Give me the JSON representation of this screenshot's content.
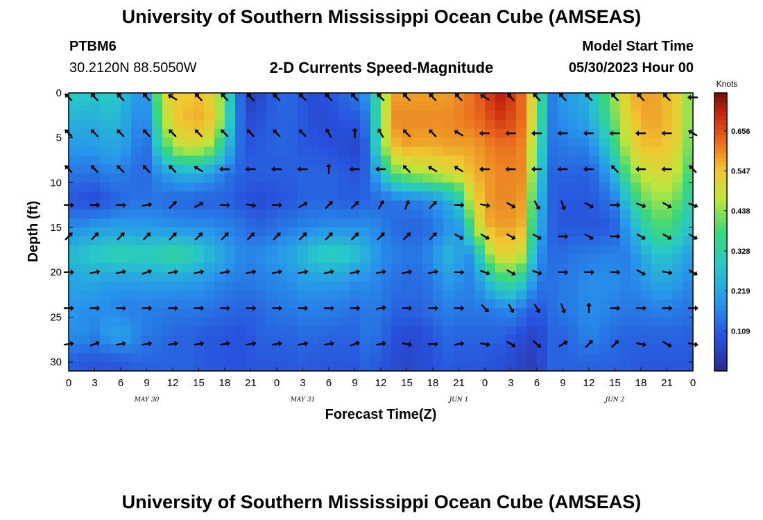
{
  "header": {
    "title": "University of Southern Mississippi Ocean Cube (AMSEAS)",
    "station": "PTBM6",
    "coords": "30.2120N  88.5050W",
    "plot_title": "2-D Currents Speed-Magnitude",
    "start_label": "Model Start Time",
    "start_value": "05/30/2023 Hour 00"
  },
  "footer": {
    "title": "University of Southern Mississippi Ocean Cube (AMSEAS)"
  },
  "colors": {
    "low": "#2d2e8f",
    "mid": "#22c58a",
    "high": "#7a0c07",
    "arrow": "#000000"
  },
  "chart_data": {
    "type": "heatmap",
    "title": "2-D Currents Speed-Magnitude",
    "xlabel": "Forecast Time(Z)",
    "ylabel": "Depth (ft)",
    "xlim": [
      0,
      72
    ],
    "ylim": [
      31,
      0
    ],
    "x_ticks": [
      0,
      3,
      6,
      9,
      12,
      15,
      18,
      21,
      24,
      27,
      30,
      33,
      36,
      39,
      42,
      45,
      48,
      51,
      54,
      57,
      60,
      63,
      66,
      69,
      72
    ],
    "x_tick_labels": [
      "0",
      "3",
      "6",
      "9",
      "12",
      "15",
      "18",
      "21",
      "0",
      "3",
      "6",
      "9",
      "12",
      "15",
      "18",
      "21",
      "0",
      "3",
      "6",
      "9",
      "12",
      "15",
      "18",
      "21",
      "0"
    ],
    "day_labels": [
      {
        "x": 9,
        "text": "MAY 30"
      },
      {
        "x": 27,
        "text": "MAY 31"
      },
      {
        "x": 45,
        "text": "JUN 1"
      },
      {
        "x": 63,
        "text": "JUN 2"
      }
    ],
    "y_ticks": [
      0,
      5,
      10,
      15,
      20,
      25,
      30
    ],
    "colorbar": {
      "label": "Knots",
      "ticks": [
        0.109,
        0.219,
        0.328,
        0.438,
        0.547,
        0.656
      ],
      "tick_labels": [
        "0.109",
        "0.219",
        "0.328",
        "0.438",
        "0.547",
        "0.656"
      ],
      "min": 0.0,
      "max": 0.76
    },
    "arrow_depths": [
      0.5,
      4.5,
      8.5,
      12.5,
      16.0,
      20.0,
      24.0,
      28.0
    ],
    "arrow_times": [
      0,
      3,
      6,
      9,
      12,
      15,
      18,
      21,
      24,
      27,
      30,
      33,
      36,
      39,
      42,
      45,
      48,
      51,
      54,
      57,
      60,
      63,
      66,
      69,
      72
    ],
    "arrow_directions_deg": [
      [
        315,
        315,
        315,
        315,
        300,
        315,
        315,
        315,
        315,
        310,
        315,
        315,
        315,
        315,
        315,
        315,
        300,
        315,
        315,
        315,
        315,
        315,
        315,
        315,
        270
      ],
      [
        315,
        315,
        315,
        315,
        315,
        315,
        315,
        315,
        315,
        315,
        330,
        360,
        330,
        315,
        315,
        300,
        270,
        270,
        270,
        270,
        270,
        270,
        270,
        270,
        300
      ],
      [
        315,
        315,
        315,
        315,
        315,
        300,
        270,
        270,
        270,
        270,
        360,
        270,
        270,
        315,
        300,
        300,
        270,
        270,
        270,
        270,
        270,
        315,
        270,
        270,
        315
      ],
      [
        90,
        90,
        90,
        80,
        45,
        60,
        90,
        100,
        90,
        60,
        45,
        45,
        30,
        20,
        45,
        90,
        100,
        120,
        150,
        160,
        120,
        90,
        110,
        120,
        110
      ],
      [
        45,
        45,
        45,
        45,
        45,
        45,
        45,
        45,
        45,
        45,
        45,
        45,
        45,
        45,
        45,
        120,
        120,
        120,
        120,
        90,
        120,
        90,
        120,
        120,
        120
      ],
      [
        90,
        80,
        80,
        70,
        80,
        80,
        80,
        80,
        80,
        80,
        80,
        80,
        80,
        80,
        80,
        90,
        110,
        120,
        110,
        90,
        90,
        90,
        120,
        100,
        120
      ],
      [
        90,
        90,
        90,
        90,
        90,
        90,
        90,
        90,
        90,
        90,
        90,
        90,
        80,
        90,
        90,
        90,
        135,
        150,
        150,
        160,
        360,
        90,
        90,
        90,
        90
      ],
      [
        80,
        70,
        80,
        80,
        80,
        80,
        80,
        80,
        80,
        80,
        80,
        70,
        80,
        100,
        90,
        80,
        100,
        120,
        130,
        60,
        45,
        45,
        100,
        120,
        100
      ]
    ],
    "profile_times": [
      0,
      1.5,
      3,
      4.5,
      6,
      7.5,
      9,
      10.5,
      12,
      13.5,
      15,
      16.5,
      18,
      19.5,
      21,
      22.5,
      24,
      25.5,
      27,
      28.5,
      30,
      31.5,
      33,
      34.5,
      36,
      37.5,
      39,
      40.5,
      42,
      43.5,
      45,
      46.5,
      48,
      49.5,
      51,
      52.5,
      54,
      55.5,
      57,
      58.5,
      60,
      61.5,
      63,
      64.5,
      66,
      67.5,
      69,
      70.5,
      72
    ],
    "profile_depths": [
      0,
      3,
      6,
      9,
      12,
      15,
      18,
      21,
      24,
      27,
      30
    ],
    "speed_knots": [
      [
        0.3,
        0.25,
        0.2,
        0.15,
        0.1,
        0.18,
        0.26,
        0.22,
        0.2,
        0.18,
        0.12
      ],
      [
        0.3,
        0.24,
        0.2,
        0.14,
        0.09,
        0.18,
        0.28,
        0.22,
        0.18,
        0.18,
        0.1
      ],
      [
        0.28,
        0.24,
        0.2,
        0.14,
        0.08,
        0.2,
        0.3,
        0.22,
        0.18,
        0.16,
        0.1
      ],
      [
        0.3,
        0.26,
        0.22,
        0.16,
        0.1,
        0.2,
        0.32,
        0.2,
        0.18,
        0.2,
        0.1
      ],
      [
        0.28,
        0.25,
        0.22,
        0.16,
        0.12,
        0.21,
        0.33,
        0.2,
        0.16,
        0.22,
        0.1
      ],
      [
        0.2,
        0.18,
        0.16,
        0.13,
        0.14,
        0.2,
        0.32,
        0.2,
        0.16,
        0.18,
        0.12
      ],
      [
        0.2,
        0.18,
        0.14,
        0.13,
        0.14,
        0.2,
        0.32,
        0.21,
        0.16,
        0.15,
        0.12
      ],
      [
        0.45,
        0.4,
        0.32,
        0.18,
        0.14,
        0.19,
        0.33,
        0.21,
        0.15,
        0.14,
        0.12
      ],
      [
        0.55,
        0.54,
        0.46,
        0.22,
        0.12,
        0.19,
        0.35,
        0.21,
        0.15,
        0.12,
        0.12
      ],
      [
        0.54,
        0.56,
        0.5,
        0.24,
        0.12,
        0.18,
        0.34,
        0.2,
        0.15,
        0.12,
        0.12
      ],
      [
        0.55,
        0.57,
        0.49,
        0.23,
        0.11,
        0.18,
        0.3,
        0.2,
        0.15,
        0.11,
        0.11
      ],
      [
        0.52,
        0.55,
        0.45,
        0.2,
        0.11,
        0.18,
        0.26,
        0.18,
        0.14,
        0.1,
        0.1
      ],
      [
        0.4,
        0.4,
        0.3,
        0.15,
        0.12,
        0.16,
        0.22,
        0.16,
        0.13,
        0.1,
        0.1
      ],
      [
        0.15,
        0.15,
        0.14,
        0.12,
        0.1,
        0.15,
        0.18,
        0.15,
        0.12,
        0.09,
        0.09
      ],
      [
        0.05,
        0.08,
        0.1,
        0.11,
        0.09,
        0.13,
        0.17,
        0.15,
        0.12,
        0.1,
        0.1
      ],
      [
        0.08,
        0.1,
        0.11,
        0.11,
        0.08,
        0.12,
        0.18,
        0.16,
        0.13,
        0.12,
        0.1
      ],
      [
        0.12,
        0.12,
        0.12,
        0.11,
        0.1,
        0.14,
        0.2,
        0.17,
        0.15,
        0.12,
        0.1
      ],
      [
        0.13,
        0.12,
        0.12,
        0.11,
        0.1,
        0.15,
        0.22,
        0.18,
        0.15,
        0.12,
        0.1
      ],
      [
        0.1,
        0.1,
        0.1,
        0.12,
        0.12,
        0.16,
        0.26,
        0.2,
        0.16,
        0.13,
        0.11
      ],
      [
        0.08,
        0.08,
        0.1,
        0.12,
        0.12,
        0.17,
        0.3,
        0.2,
        0.16,
        0.13,
        0.1
      ],
      [
        0.1,
        0.08,
        0.09,
        0.12,
        0.12,
        0.18,
        0.32,
        0.2,
        0.16,
        0.12,
        0.1
      ],
      [
        0.12,
        0.1,
        0.08,
        0.11,
        0.11,
        0.18,
        0.31,
        0.2,
        0.15,
        0.12,
        0.1
      ],
      [
        0.15,
        0.1,
        0.07,
        0.1,
        0.11,
        0.18,
        0.28,
        0.18,
        0.14,
        0.12,
        0.1
      ],
      [
        0.2,
        0.15,
        0.12,
        0.12,
        0.12,
        0.18,
        0.24,
        0.18,
        0.15,
        0.15,
        0.12
      ],
      [
        0.4,
        0.42,
        0.4,
        0.26,
        0.13,
        0.16,
        0.18,
        0.16,
        0.15,
        0.13,
        0.1
      ],
      [
        0.58,
        0.6,
        0.55,
        0.4,
        0.14,
        0.13,
        0.16,
        0.14,
        0.12,
        0.09,
        0.08
      ],
      [
        0.58,
        0.6,
        0.58,
        0.44,
        0.15,
        0.12,
        0.15,
        0.13,
        0.12,
        0.08,
        0.07
      ],
      [
        0.58,
        0.6,
        0.57,
        0.46,
        0.16,
        0.12,
        0.15,
        0.13,
        0.12,
        0.08,
        0.08
      ],
      [
        0.58,
        0.6,
        0.57,
        0.48,
        0.18,
        0.14,
        0.18,
        0.15,
        0.14,
        0.1,
        0.09
      ],
      [
        0.58,
        0.6,
        0.58,
        0.5,
        0.22,
        0.18,
        0.26,
        0.2,
        0.16,
        0.13,
        0.11
      ],
      [
        0.6,
        0.61,
        0.58,
        0.52,
        0.3,
        0.2,
        0.22,
        0.18,
        0.15,
        0.12,
        0.1
      ],
      [
        0.62,
        0.62,
        0.58,
        0.56,
        0.5,
        0.4,
        0.18,
        0.16,
        0.15,
        0.12,
        0.1
      ],
      [
        0.66,
        0.64,
        0.6,
        0.58,
        0.58,
        0.56,
        0.4,
        0.24,
        0.15,
        0.12,
        0.1
      ],
      [
        0.72,
        0.68,
        0.62,
        0.6,
        0.6,
        0.58,
        0.52,
        0.34,
        0.16,
        0.12,
        0.09
      ],
      [
        0.68,
        0.66,
        0.62,
        0.6,
        0.6,
        0.58,
        0.52,
        0.36,
        0.18,
        0.1,
        0.08
      ],
      [
        0.62,
        0.62,
        0.6,
        0.6,
        0.58,
        0.56,
        0.48,
        0.3,
        0.14,
        0.08,
        0.06
      ],
      [
        0.45,
        0.45,
        0.4,
        0.36,
        0.3,
        0.26,
        0.2,
        0.15,
        0.1,
        0.06,
        0.05
      ],
      [
        0.15,
        0.15,
        0.14,
        0.12,
        0.12,
        0.12,
        0.13,
        0.14,
        0.13,
        0.12,
        0.12
      ],
      [
        0.2,
        0.18,
        0.15,
        0.12,
        0.1,
        0.1,
        0.13,
        0.15,
        0.15,
        0.12,
        0.12
      ],
      [
        0.22,
        0.2,
        0.16,
        0.12,
        0.1,
        0.1,
        0.15,
        0.16,
        0.16,
        0.14,
        0.12
      ],
      [
        0.25,
        0.22,
        0.16,
        0.11,
        0.1,
        0.1,
        0.15,
        0.18,
        0.18,
        0.17,
        0.12
      ],
      [
        0.36,
        0.32,
        0.24,
        0.16,
        0.12,
        0.1,
        0.16,
        0.18,
        0.17,
        0.15,
        0.12
      ],
      [
        0.45,
        0.42,
        0.36,
        0.26,
        0.16,
        0.12,
        0.16,
        0.18,
        0.16,
        0.13,
        0.12
      ],
      [
        0.55,
        0.52,
        0.48,
        0.4,
        0.28,
        0.2,
        0.16,
        0.16,
        0.15,
        0.12,
        0.11
      ],
      [
        0.58,
        0.57,
        0.55,
        0.48,
        0.4,
        0.3,
        0.22,
        0.18,
        0.15,
        0.12,
        0.1
      ],
      [
        0.58,
        0.58,
        0.56,
        0.5,
        0.44,
        0.38,
        0.28,
        0.22,
        0.16,
        0.12,
        0.1
      ],
      [
        0.56,
        0.56,
        0.54,
        0.5,
        0.44,
        0.38,
        0.28,
        0.22,
        0.16,
        0.12,
        0.1
      ],
      [
        0.52,
        0.52,
        0.5,
        0.46,
        0.4,
        0.34,
        0.24,
        0.2,
        0.15,
        0.12,
        0.1
      ],
      [
        0.4,
        0.4,
        0.38,
        0.35,
        0.3,
        0.26,
        0.2,
        0.16,
        0.14,
        0.11,
        0.1
      ]
    ]
  }
}
